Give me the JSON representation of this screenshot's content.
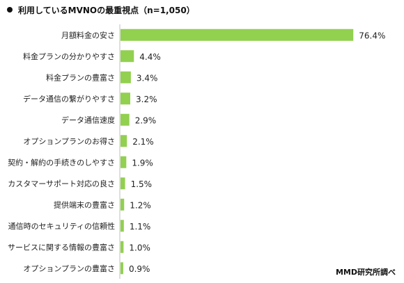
{
  "title": "利用しているMVNOの最重視点（n=1,050）",
  "source": "MMD研究所調べ",
  "chart_data": {
    "type": "bar",
    "orientation": "horizontal",
    "title": "利用しているMVNOの最重視点（n=1,050）",
    "unit": "%",
    "categories": [
      "月額料金の安さ",
      "料金プランの分かりやすさ",
      "料金プランの豊富さ",
      "データ通信の繋がりやすさ",
      "データ通信速度",
      "オプションプランのお得さ",
      "契約・解約の手続きのしやすさ",
      "カスタマーサポート対応の良さ",
      "提供端末の豊富さ",
      "通信時のセキュリティの信頼性",
      "サービスに関する情報の豊富さ",
      "オプションプランの豊富さ"
    ],
    "values": [
      76.4,
      4.4,
      3.4,
      3.2,
      2.9,
      2.1,
      1.9,
      1.5,
      1.2,
      1.1,
      1.0,
      0.9
    ],
    "value_labels": [
      "76.4%",
      "4.4%",
      "3.4%",
      "3.2%",
      "2.9%",
      "2.1%",
      "1.9%",
      "1.5%",
      "1.2%",
      "1.1%",
      "1.0%",
      "0.9%"
    ],
    "xlim": [
      0,
      80
    ],
    "bar_color": "#92d050",
    "axis_color": "#bfbfbf",
    "grid": false,
    "legend": "none"
  }
}
